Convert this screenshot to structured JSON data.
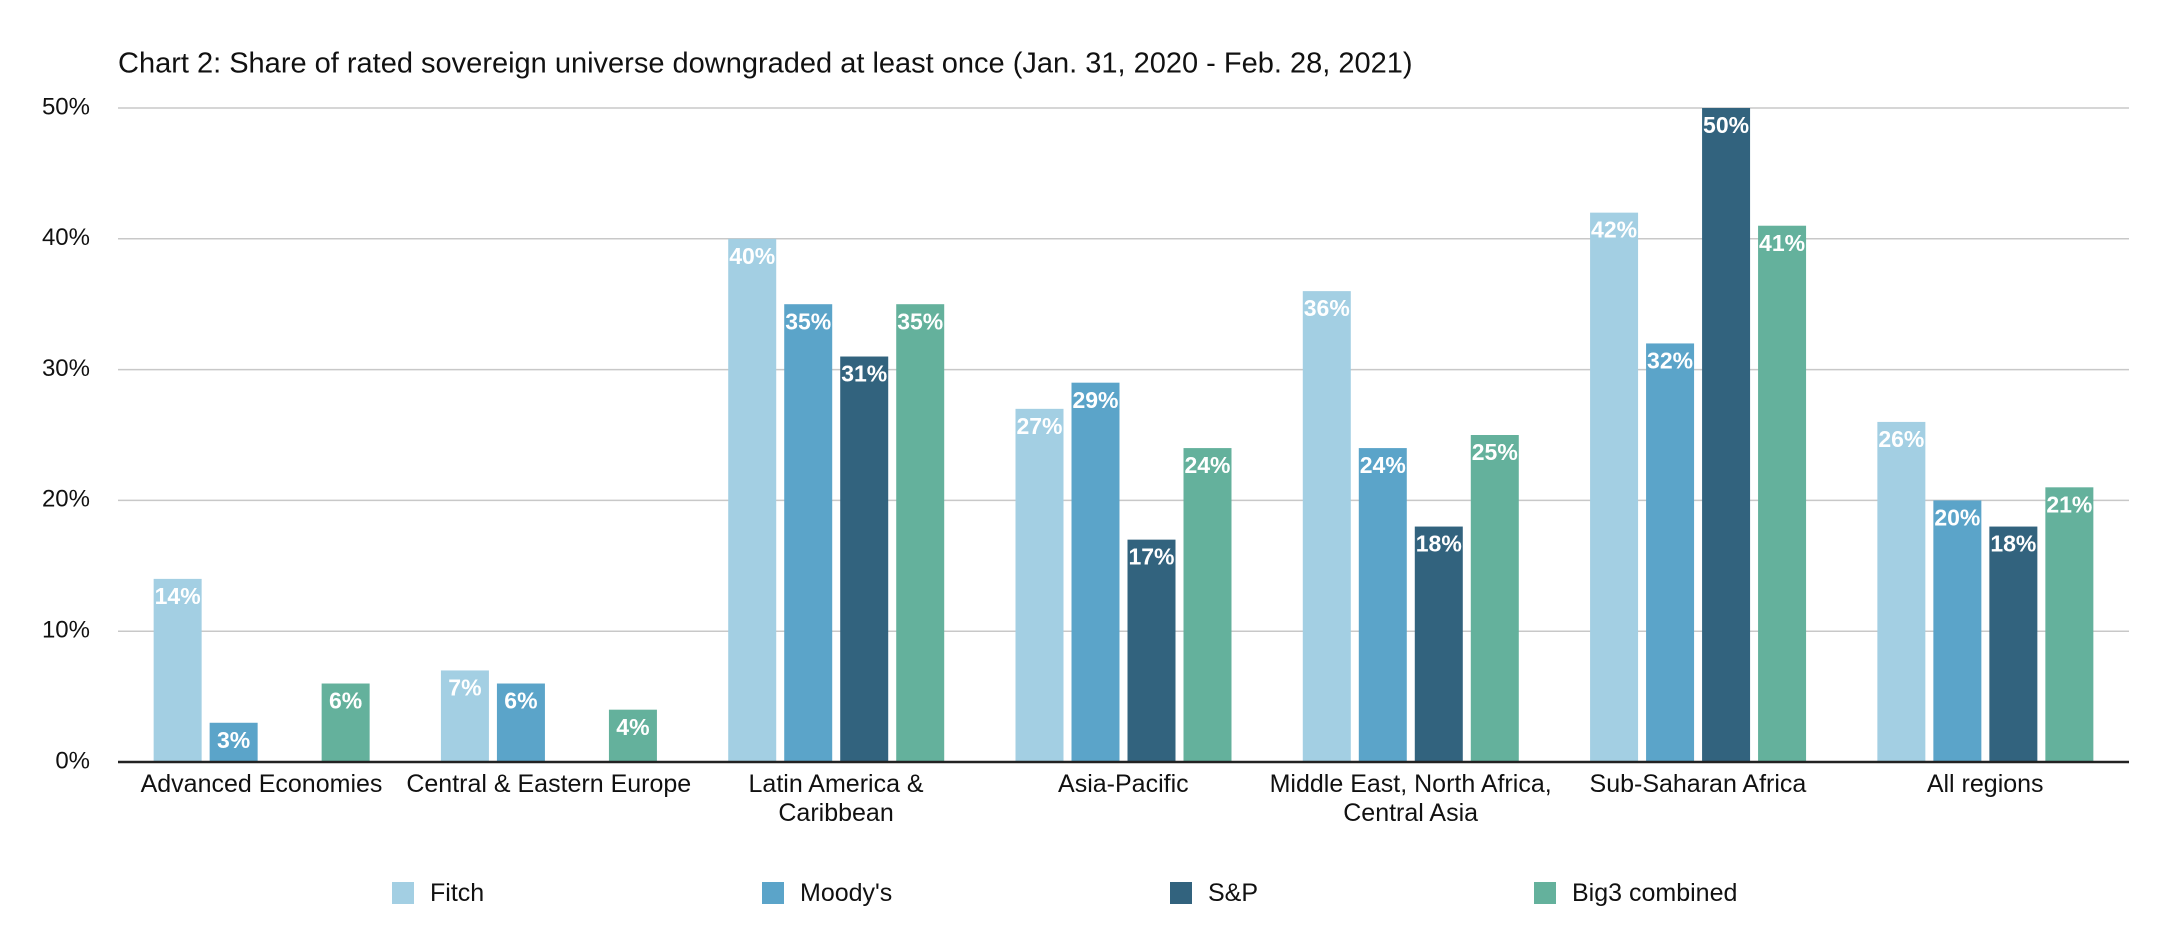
{
  "chart_data": {
    "type": "bar",
    "title": "Chart 2: Share of rated sovereign universe downgraded at least once (Jan. 31, 2020 - Feb. 28, 2021)",
    "categories": [
      "Advanced Economies",
      "Central & Eastern Europe",
      "Latin America & Caribbean",
      "Asia-Pacific",
      "Middle East, North Africa, Central Asia",
      "Sub-Saharan Africa",
      "All regions"
    ],
    "series": [
      {
        "name": "Fitch",
        "color": "#a3cfe3",
        "values": [
          14,
          7,
          40,
          27,
          36,
          42,
          26
        ],
        "value_labels": [
          "14%",
          "7%",
          "40%",
          "27%",
          "36%",
          "42%",
          "26%"
        ]
      },
      {
        "name": "Moody's",
        "color": "#5ba4c9",
        "values": [
          3,
          6,
          35,
          29,
          24,
          32,
          20
        ],
        "value_labels": [
          "3%",
          "6%",
          "35%",
          "29%",
          "24%",
          "32%",
          "20%"
        ]
      },
      {
        "name": "S&P",
        "color": "#32637e",
        "values": [
          null,
          null,
          31,
          17,
          18,
          50,
          18
        ],
        "value_labels": [
          null,
          null,
          "31%",
          "17%",
          "18%",
          "50%",
          "18%"
        ]
      },
      {
        "name": "Big3 combined",
        "color": "#64b19c",
        "values": [
          6,
          4,
          35,
          24,
          25,
          41,
          21
        ],
        "value_labels": [
          "6%",
          "4%",
          "35%",
          "24%",
          "25%",
          "41%",
          "21%"
        ]
      }
    ],
    "ylim": [
      0,
      50
    ],
    "yticks": [
      {
        "value": 0,
        "label": "0%"
      },
      {
        "value": 10,
        "label": "10%"
      },
      {
        "value": 20,
        "label": "20%"
      },
      {
        "value": 30,
        "label": "30%"
      },
      {
        "value": 40,
        "label": "40%"
      },
      {
        "value": 50,
        "label": "50%"
      }
    ],
    "grid": true
  }
}
